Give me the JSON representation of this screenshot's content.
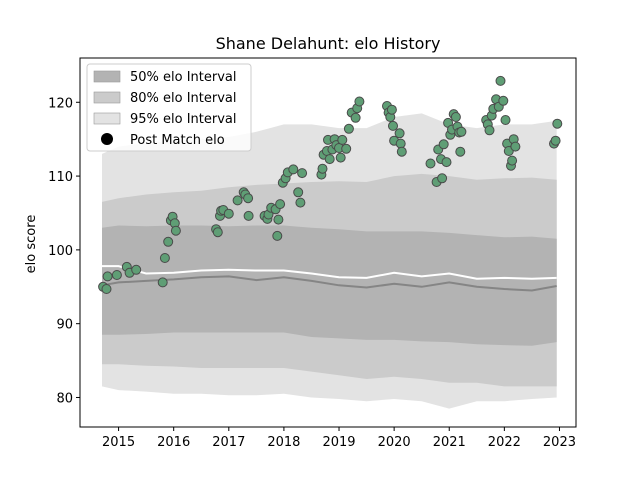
{
  "chart_data": {
    "type": "scatter",
    "title": "Shane Delahunt: elo History",
    "xlabel": "",
    "ylabel": "elo score",
    "xlim": [
      2014.3,
      2023.3
    ],
    "ylim": [
      76,
      126
    ],
    "x_ticks": [
      2015,
      2016,
      2017,
      2018,
      2019,
      2020,
      2021,
      2022,
      2023
    ],
    "y_ticks": [
      80,
      90,
      100,
      110,
      120
    ],
    "grid": false,
    "legend_placement": "top-left",
    "legend": [
      {
        "label": "50% elo Interval",
        "color": "#b3b3b3"
      },
      {
        "label": "80% elo Interval",
        "color": "#cbcbcb"
      },
      {
        "label": "95% elo Interval",
        "color": "#e3e3e3"
      },
      {
        "label": "Post Match elo",
        "color": "#000000"
      }
    ],
    "bands": {
      "x": [
        2014.7,
        2015.0,
        2015.5,
        2016.0,
        2016.5,
        2017.0,
        2017.5,
        2018.0,
        2018.5,
        2019.0,
        2019.5,
        2020.0,
        2020.5,
        2021.0,
        2021.5,
        2022.0,
        2022.5,
        2022.95
      ],
      "interval_95": {
        "upper": [
          113,
          114,
          114.5,
          114.8,
          115,
          115.3,
          116,
          117,
          117,
          116.5,
          116.5,
          118,
          118.5,
          117,
          116.5,
          117,
          117,
          117.5
        ],
        "lower": [
          81.5,
          81,
          80.8,
          80.5,
          80.5,
          80.3,
          80.3,
          80.5,
          80,
          79.8,
          79.5,
          79.8,
          79.5,
          78.5,
          79.5,
          79.5,
          79.8,
          80
        ]
      },
      "interval_80": {
        "upper": [
          106.5,
          107,
          107.5,
          107.8,
          108,
          108.5,
          108.8,
          109,
          109.2,
          109.3,
          109.2,
          110,
          110.3,
          110,
          109.5,
          109.7,
          109.8,
          109.5
        ],
        "lower": [
          84.5,
          84.5,
          84.3,
          84.2,
          84,
          84,
          84,
          84,
          83.5,
          83,
          82.5,
          82.8,
          82.5,
          82,
          82,
          81.5,
          81.5,
          81.5
        ]
      },
      "interval_50": {
        "upper": [
          103,
          103.3,
          103.2,
          103.3,
          103.3,
          103.2,
          103.3,
          103.3,
          103,
          102.8,
          102.5,
          102.5,
          102.5,
          102.3,
          102,
          101.7,
          101.8,
          101.5
        ],
        "lower": [
          88.5,
          88.5,
          88.6,
          88.8,
          88.8,
          88.8,
          88.8,
          88.8,
          88.2,
          88,
          87.8,
          87.8,
          87.6,
          87.5,
          87.2,
          87.1,
          87,
          87.5
        ]
      },
      "median_line": [
        95.2,
        95.6,
        95.8,
        96,
        96.3,
        96.4,
        95.9,
        96.3,
        95.8,
        95.2,
        94.9,
        95.4,
        95,
        95.6,
        95,
        94.7,
        94.5,
        95.1
      ],
      "mean_line": [
        97.8,
        97.8,
        96.8,
        96.9,
        97.2,
        97.3,
        97.2,
        97.2,
        96.8,
        96.3,
        96.2,
        96.9,
        96.4,
        96.8,
        96.1,
        96.2,
        96.1,
        96.2
      ]
    },
    "series": [
      {
        "points": [
          {
            "x": 2014.72,
            "y": 95.0
          },
          {
            "x": 2014.78,
            "y": 94.7
          },
          {
            "x": 2014.8,
            "y": 96.4
          },
          {
            "x": 2014.97,
            "y": 96.6
          },
          {
            "x": 2015.15,
            "y": 97.7
          },
          {
            "x": 2015.2,
            "y": 96.9
          },
          {
            "x": 2015.32,
            "y": 97.3
          },
          {
            "x": 2015.8,
            "y": 95.6
          },
          {
            "x": 2015.84,
            "y": 98.9
          },
          {
            "x": 2015.9,
            "y": 101.1
          },
          {
            "x": 2015.95,
            "y": 104.0
          },
          {
            "x": 2015.98,
            "y": 104.5
          },
          {
            "x": 2016.02,
            "y": 103.6
          },
          {
            "x": 2016.04,
            "y": 102.6
          },
          {
            "x": 2016.77,
            "y": 102.8
          },
          {
            "x": 2016.8,
            "y": 102.4
          },
          {
            "x": 2016.84,
            "y": 104.6
          },
          {
            "x": 2016.86,
            "y": 105.3
          },
          {
            "x": 2016.9,
            "y": 105.4
          },
          {
            "x": 2017.0,
            "y": 104.9
          },
          {
            "x": 2017.16,
            "y": 106.7
          },
          {
            "x": 2017.27,
            "y": 107.8
          },
          {
            "x": 2017.3,
            "y": 107.5
          },
          {
            "x": 2017.35,
            "y": 107.0
          },
          {
            "x": 2017.36,
            "y": 104.6
          },
          {
            "x": 2017.65,
            "y": 104.6
          },
          {
            "x": 2017.7,
            "y": 104.2
          },
          {
            "x": 2017.72,
            "y": 104.8
          },
          {
            "x": 2017.77,
            "y": 105.7
          },
          {
            "x": 2017.85,
            "y": 105.5
          },
          {
            "x": 2017.88,
            "y": 101.9
          },
          {
            "x": 2017.9,
            "y": 104.1
          },
          {
            "x": 2017.93,
            "y": 106.2
          },
          {
            "x": 2017.98,
            "y": 109.1
          },
          {
            "x": 2018.03,
            "y": 109.7
          },
          {
            "x": 2018.07,
            "y": 110.5
          },
          {
            "x": 2018.17,
            "y": 110.9
          },
          {
            "x": 2018.26,
            "y": 107.8
          },
          {
            "x": 2018.3,
            "y": 106.4
          },
          {
            "x": 2018.33,
            "y": 110.4
          },
          {
            "x": 2018.68,
            "y": 110.2
          },
          {
            "x": 2018.7,
            "y": 111.0
          },
          {
            "x": 2018.72,
            "y": 112.9
          },
          {
            "x": 2018.78,
            "y": 113.4
          },
          {
            "x": 2018.8,
            "y": 114.9
          },
          {
            "x": 2018.83,
            "y": 112.3
          },
          {
            "x": 2018.88,
            "y": 113.6
          },
          {
            "x": 2018.92,
            "y": 115.0
          },
          {
            "x": 2018.95,
            "y": 114.2
          },
          {
            "x": 2019.0,
            "y": 113.8
          },
          {
            "x": 2019.03,
            "y": 112.5
          },
          {
            "x": 2019.06,
            "y": 114.9
          },
          {
            "x": 2019.13,
            "y": 113.7
          },
          {
            "x": 2019.18,
            "y": 116.4
          },
          {
            "x": 2019.23,
            "y": 118.6
          },
          {
            "x": 2019.3,
            "y": 117.9
          },
          {
            "x": 2019.33,
            "y": 119.2
          },
          {
            "x": 2019.37,
            "y": 120.1
          },
          {
            "x": 2019.87,
            "y": 119.5
          },
          {
            "x": 2019.9,
            "y": 118.6
          },
          {
            "x": 2019.93,
            "y": 118.0
          },
          {
            "x": 2019.96,
            "y": 119.0
          },
          {
            "x": 2019.98,
            "y": 116.8
          },
          {
            "x": 2020.0,
            "y": 114.8
          },
          {
            "x": 2020.1,
            "y": 115.8
          },
          {
            "x": 2020.12,
            "y": 114.4
          },
          {
            "x": 2020.14,
            "y": 113.3
          },
          {
            "x": 2020.66,
            "y": 111.7
          },
          {
            "x": 2020.77,
            "y": 109.2
          },
          {
            "x": 2020.8,
            "y": 113.6
          },
          {
            "x": 2020.85,
            "y": 112.3
          },
          {
            "x": 2020.87,
            "y": 109.7
          },
          {
            "x": 2020.9,
            "y": 114.3
          },
          {
            "x": 2020.95,
            "y": 111.9
          },
          {
            "x": 2020.98,
            "y": 117.2
          },
          {
            "x": 2021.02,
            "y": 115.6
          },
          {
            "x": 2021.05,
            "y": 116.3
          },
          {
            "x": 2021.08,
            "y": 118.4
          },
          {
            "x": 2021.12,
            "y": 118.0
          },
          {
            "x": 2021.15,
            "y": 116.7
          },
          {
            "x": 2021.18,
            "y": 115.9
          },
          {
            "x": 2021.2,
            "y": 113.3
          },
          {
            "x": 2021.22,
            "y": 116.0
          },
          {
            "x": 2021.67,
            "y": 117.6
          },
          {
            "x": 2021.7,
            "y": 117.0
          },
          {
            "x": 2021.73,
            "y": 116.2
          },
          {
            "x": 2021.77,
            "y": 118.2
          },
          {
            "x": 2021.8,
            "y": 119.1
          },
          {
            "x": 2021.85,
            "y": 120.4
          },
          {
            "x": 2021.9,
            "y": 119.4
          },
          {
            "x": 2021.93,
            "y": 122.9
          },
          {
            "x": 2021.98,
            "y": 120.2
          },
          {
            "x": 2022.02,
            "y": 117.6
          },
          {
            "x": 2022.05,
            "y": 114.4
          },
          {
            "x": 2022.08,
            "y": 113.4
          },
          {
            "x": 2022.12,
            "y": 111.4
          },
          {
            "x": 2022.14,
            "y": 112.1
          },
          {
            "x": 2022.17,
            "y": 115.0
          },
          {
            "x": 2022.2,
            "y": 114.0
          },
          {
            "x": 2022.9,
            "y": 114.4
          },
          {
            "x": 2022.93,
            "y": 114.8
          },
          {
            "x": 2022.96,
            "y": 117.1
          }
        ]
      }
    ],
    "colors": {
      "interval_50": "#b3b3b3",
      "interval_80": "#cbcbcb",
      "interval_95": "#e3e3e3",
      "median_line": "#858585",
      "mean_line": "#ffffff",
      "point_fill": "#5f9e75",
      "point_edge": "#4a4a4a"
    }
  }
}
